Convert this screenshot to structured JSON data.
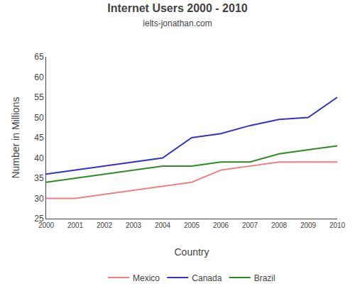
{
  "chart_data": {
    "type": "line",
    "title": "Internet Users 2000 - 2010",
    "subtitle": "ielts-jonathan.com",
    "xlabel": "Country",
    "ylabel": "Number in Millions",
    "x": [
      2000,
      2001,
      2002,
      2003,
      2004,
      2005,
      2006,
      2007,
      2008,
      2009,
      2010
    ],
    "series": [
      {
        "name": "Mexico",
        "color": "#F08080",
        "values": [
          30,
          30,
          31,
          32,
          33,
          34,
          37,
          38,
          39,
          39,
          39
        ]
      },
      {
        "name": "Canada",
        "color": "#3333CC",
        "values": [
          36,
          37,
          38,
          39,
          40,
          45,
          46,
          48,
          49.5,
          50,
          55
        ]
      },
      {
        "name": "Brazil",
        "color": "#2E8B22",
        "values": [
          34,
          35,
          36,
          37,
          38,
          38,
          39,
          39,
          41,
          42,
          43
        ]
      }
    ],
    "xlim": [
      2000,
      2010
    ],
    "ylim": [
      25,
      65
    ],
    "xticks": [
      2000,
      2001,
      2002,
      2003,
      2004,
      2005,
      2006,
      2007,
      2008,
      2009,
      2010
    ],
    "yticks": [
      25,
      30,
      35,
      40,
      45,
      50,
      55,
      60,
      65
    ],
    "grid": false,
    "legend": "bottom"
  }
}
